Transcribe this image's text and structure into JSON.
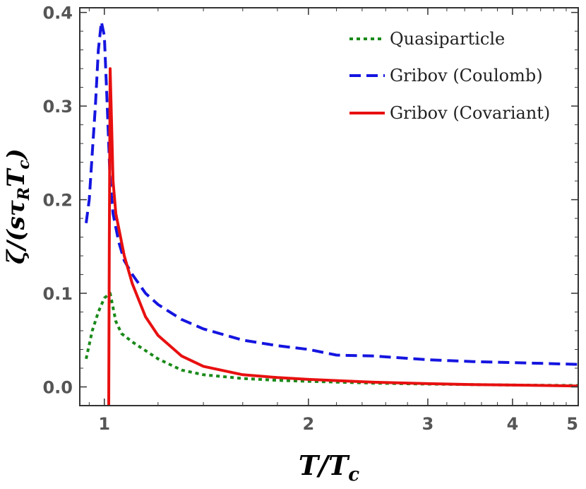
{
  "chart_data": {
    "type": "line",
    "xlabel": "T/T_c",
    "ylabel": "ζ/(sτ_R T_c)",
    "xscale": "log",
    "xlim": [
      0.92,
      5.0
    ],
    "ylim": [
      -0.02,
      0.405
    ],
    "x_ticks": [
      1,
      2,
      3,
      4,
      5
    ],
    "x_tick_labels": [
      "1",
      "2",
      "3",
      "4",
      "5"
    ],
    "y_ticks": [
      0.0,
      0.1,
      0.2,
      0.3,
      0.4
    ],
    "y_tick_labels": [
      "0.0",
      "0.1",
      "0.2",
      "0.3",
      "0.4"
    ],
    "grid": false,
    "legend_position": "top-right",
    "series": [
      {
        "name": "Quasiparticle",
        "color": "#1a8a1a",
        "style": "dotted",
        "x": [
          0.94,
          0.96,
          0.98,
          1.0,
          1.02,
          1.04,
          1.06,
          1.1,
          1.2,
          1.3,
          1.4,
          1.6,
          1.8,
          2.0,
          2.5,
          3.0,
          4.0,
          5.0
        ],
        "y": [
          0.03,
          0.06,
          0.08,
          0.095,
          0.1,
          0.07,
          0.057,
          0.048,
          0.03,
          0.018,
          0.013,
          0.009,
          0.007,
          0.006,
          0.004,
          0.003,
          0.002,
          0.0015
        ]
      },
      {
        "name": "Gribov (Coulomb)",
        "color": "#1515e0",
        "style": "dashed",
        "x": [
          0.94,
          0.95,
          0.96,
          0.97,
          0.98,
          0.99,
          1.0,
          1.01,
          1.02,
          1.03,
          1.05,
          1.07,
          1.1,
          1.15,
          1.2,
          1.3,
          1.4,
          1.6,
          1.8,
          2.0,
          2.2,
          2.5,
          3.0,
          3.5,
          4.0,
          4.5,
          5.0
        ],
        "y": [
          0.175,
          0.2,
          0.25,
          0.3,
          0.36,
          0.39,
          0.375,
          0.3,
          0.22,
          0.185,
          0.155,
          0.135,
          0.12,
          0.1,
          0.088,
          0.072,
          0.062,
          0.05,
          0.044,
          0.04,
          0.034,
          0.033,
          0.029,
          0.027,
          0.026,
          0.025,
          0.024
        ]
      },
      {
        "name": "Gribov (Covariant)",
        "color": "#e81010",
        "style": "solid",
        "x": [
          1.015,
          1.017,
          1.02,
          1.025,
          1.03,
          1.04,
          1.05,
          1.07,
          1.1,
          1.15,
          1.2,
          1.3,
          1.4,
          1.6,
          1.8,
          2.0,
          2.5,
          3.0,
          3.5,
          4.0,
          5.0
        ],
        "y": [
          -0.02,
          0.15,
          0.34,
          0.28,
          0.22,
          0.185,
          0.17,
          0.14,
          0.11,
          0.075,
          0.055,
          0.033,
          0.022,
          0.013,
          0.01,
          0.008,
          0.005,
          0.0035,
          0.0025,
          0.002,
          0.001
        ]
      }
    ]
  }
}
